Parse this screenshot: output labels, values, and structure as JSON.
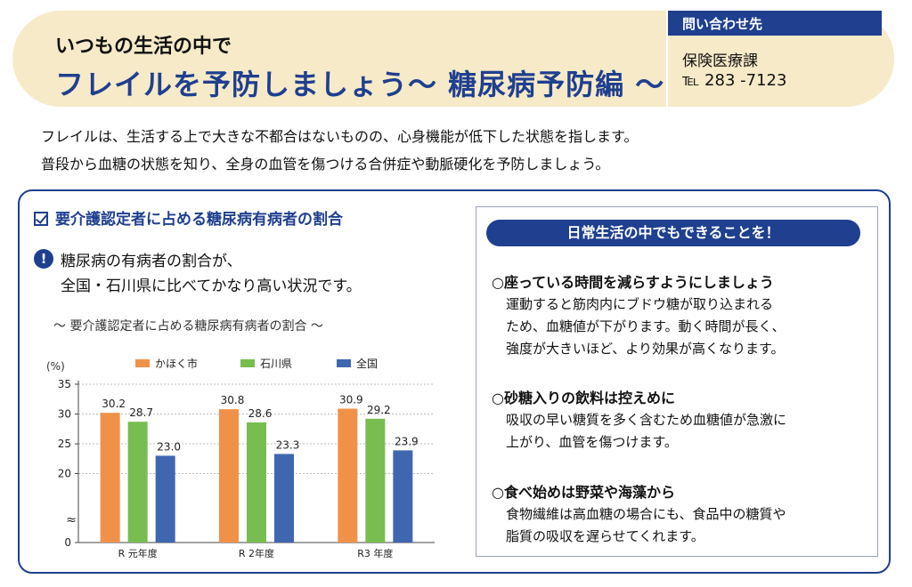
{
  "header": {
    "subtitle": "いつもの生活の中で",
    "title": "フレイルを予防しましょう～ 糖尿病予防編 ～"
  },
  "contact": {
    "heading": "問い合わせ先",
    "department": "保険医療課",
    "tel": "℡ 283 -7123"
  },
  "intro": {
    "line1": "フレイルは、生活する上で大きな不都合はないものの、心身機能が低下した状態を指します。",
    "line2": "普段から血糖の状態を知り、全身の血管を傷つける合併症や動脈硬化を予防しましょう。"
  },
  "section": {
    "title": "要介護認定者に占める糖尿病有病者の割合",
    "alert_mark": "!",
    "note_line1": "糖尿病の有病者の割合が、",
    "note_line2": "全国・石川県に比べてかなり高い状況です。",
    "chart_caption": "～ 要介護認定者に占める糖尿病有病者の割合 ～"
  },
  "chart_data": {
    "type": "bar",
    "ylabel": "(%)",
    "categories": [
      "R 元年度",
      "R 2年度",
      "R3 年度"
    ],
    "series": [
      {
        "name": "かほく市",
        "color": "#f0914a",
        "values": [
          30.2,
          30.8,
          30.9
        ]
      },
      {
        "name": "石川県",
        "color": "#77bd4f",
        "values": [
          28.7,
          28.6,
          29.2
        ]
      },
      {
        "name": "全国",
        "color": "#3f67b0",
        "values": [
          23.0,
          23.3,
          23.9
        ]
      }
    ],
    "value_labels": [
      [
        "30.2",
        "30.8",
        "30.9"
      ],
      [
        "28.7",
        "28.6",
        "29.2"
      ],
      [
        "23.0",
        "23.3",
        "23.9"
      ]
    ],
    "yticks": [
      20,
      25,
      30,
      35
    ],
    "ytick_labels": [
      "20",
      "25",
      "30",
      "35"
    ],
    "ylim": [
      15,
      35
    ],
    "axis_break": true,
    "break_mark": "≈",
    "zero_label": "0",
    "grid": true,
    "legend": "top"
  },
  "tips": {
    "heading": "日常生活の中でもできることを！",
    "items": [
      {
        "title": "○座っている時間を減らすようにしましょう",
        "lines": [
          "運動すると筋肉内にブドウ糖が取り込まれる",
          "ため、血糖値が下がります。動く時間が長く、",
          "強度が大きいほど、より効果が高くなります。"
        ]
      },
      {
        "title": "○砂糖入りの飲料は控えめに",
        "lines": [
          "吸収の早い糖質を多く含むため血糖値が急激に",
          "上がり、血管を傷つけます。"
        ]
      },
      {
        "title": "○食べ始めは野菜や海藻から",
        "lines": [
          "食物繊維は高血糖の場合にも、食品中の糖質や",
          "脂質の吸収を遅らせてくれます。"
        ]
      }
    ]
  }
}
